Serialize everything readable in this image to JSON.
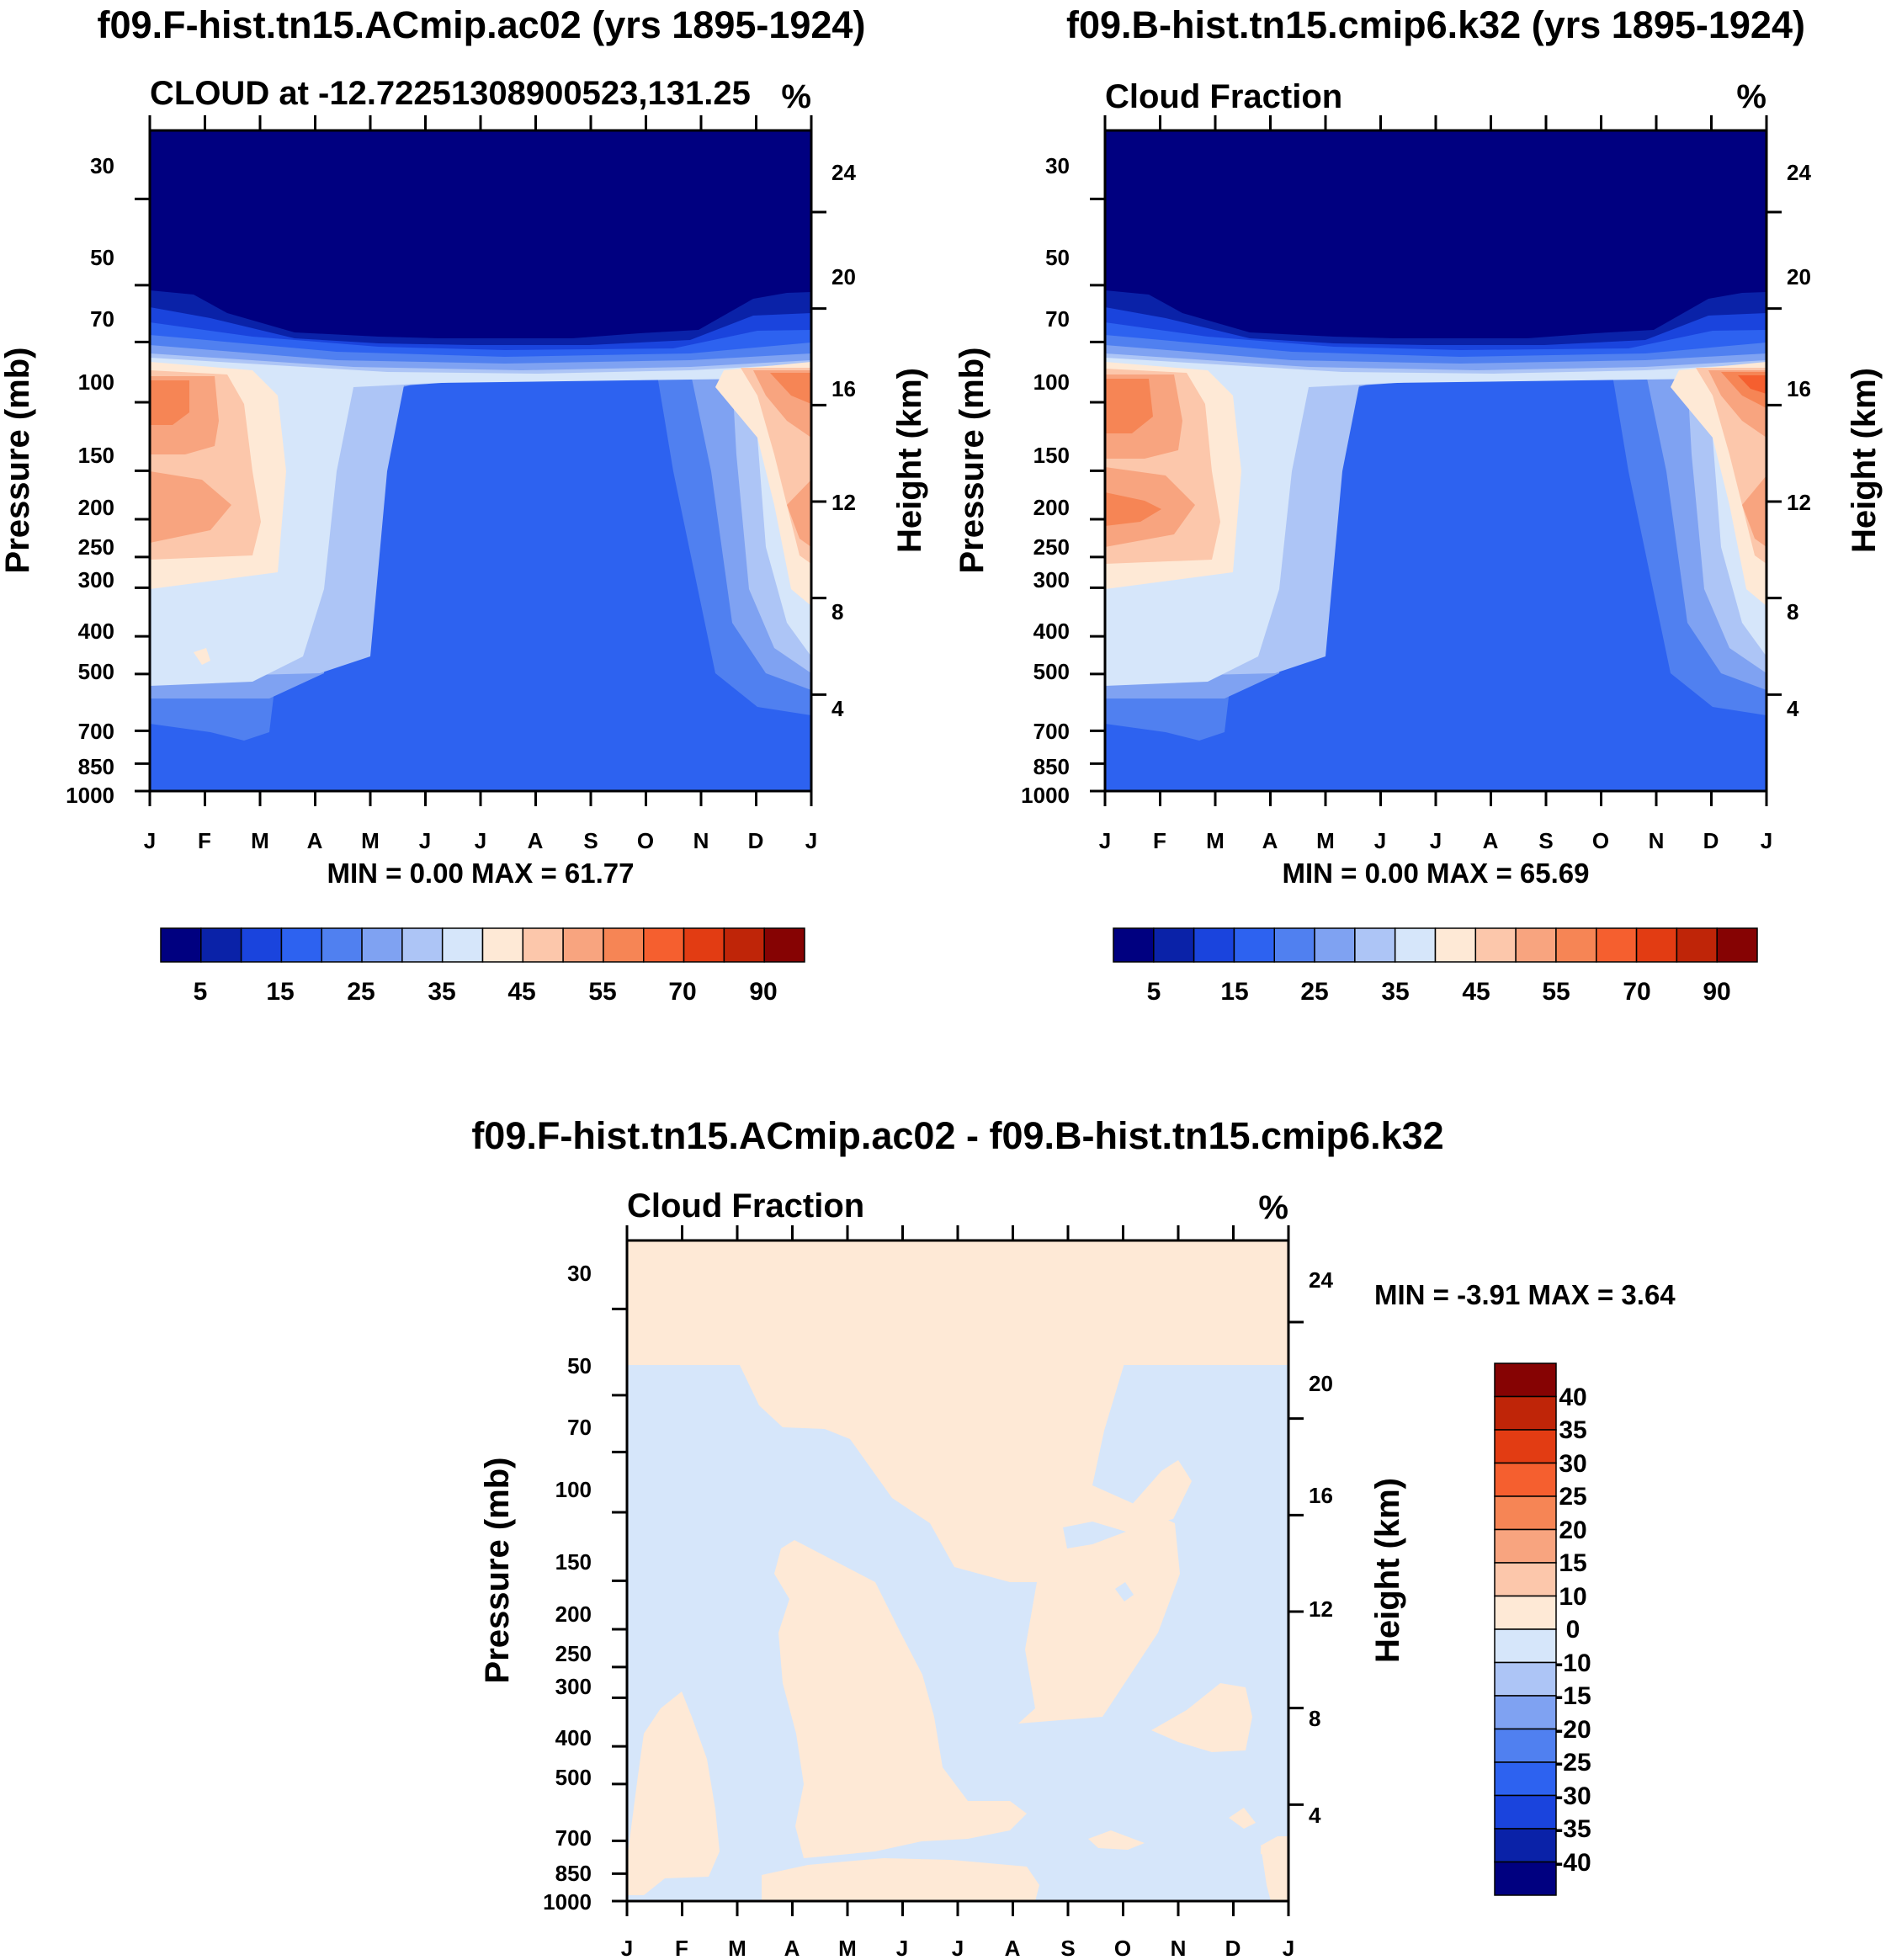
{
  "chart_data": {
    "type": "contour",
    "panels": [
      {
        "id": "p1",
        "title": "f09.F-hist.tn15.ACmip.ac02 (yrs 1895-1924)",
        "left_label": "CLOUD at -12.72251308900523,131.25",
        "right_label": "%",
        "ylabel": "Pressure (mb)",
        "y2label": "Height (km)",
        "min_max": "MIN =    0.00 MAX =  61.77",
        "months": [
          "J",
          "F",
          "M",
          "A",
          "M",
          "J",
          "J",
          "A",
          "S",
          "O",
          "N",
          "D",
          "J"
        ],
        "pressure_ticks": [
          "30",
          "50",
          "70",
          "100",
          "150",
          "200",
          "250",
          "300",
          "400",
          "500",
          "700",
          "850",
          "1000"
        ],
        "height_ticks": [
          "24",
          "20",
          "16",
          "12",
          "8",
          "4"
        ],
        "colorbar_labels": [
          "5",
          "15",
          "25",
          "35",
          "45",
          "55",
          "70",
          "90"
        ],
        "levels": [
          5,
          10,
          15,
          20,
          25,
          30,
          35,
          40,
          45,
          50,
          55,
          60,
          70,
          80,
          90
        ]
      },
      {
        "id": "p2",
        "title": "f09.B-hist.tn15.cmip6.k32 (yrs 1895-1924)",
        "left_label": "Cloud Fraction",
        "right_label": "%",
        "ylabel": "Pressure (mb)",
        "y2label": "Height (km)",
        "min_max": "MIN =    0.00 MAX =  65.69",
        "months": [
          "J",
          "F",
          "M",
          "A",
          "M",
          "J",
          "J",
          "A",
          "S",
          "O",
          "N",
          "D",
          "J"
        ],
        "pressure_ticks": [
          "30",
          "50",
          "70",
          "100",
          "150",
          "200",
          "250",
          "300",
          "400",
          "500",
          "700",
          "850",
          "1000"
        ],
        "height_ticks": [
          "24",
          "20",
          "16",
          "12",
          "8",
          "4"
        ],
        "colorbar_labels": [
          "5",
          "15",
          "25",
          "35",
          "45",
          "55",
          "70",
          "90"
        ],
        "levels": [
          5,
          10,
          15,
          20,
          25,
          30,
          35,
          40,
          45,
          50,
          55,
          60,
          70,
          80,
          90
        ]
      },
      {
        "id": "p3",
        "title": "f09.F-hist.tn15.ACmip.ac02 - f09.B-hist.tn15.cmip6.k32",
        "left_label": "Cloud Fraction",
        "right_label": "%",
        "ylabel": "Pressure (mb)",
        "y2label": "Height (km)",
        "min_max": "MIN =  -3.91 MAX =   3.64",
        "months": [
          "J",
          "F",
          "M",
          "A",
          "M",
          "J",
          "J",
          "A",
          "S",
          "O",
          "N",
          "D",
          "J"
        ],
        "pressure_ticks": [
          "30",
          "50",
          "70",
          "100",
          "150",
          "200",
          "250",
          "300",
          "400",
          "500",
          "700",
          "850",
          "1000"
        ],
        "height_ticks": [
          "24",
          "20",
          "16",
          "12",
          "8",
          "4"
        ],
        "colorbar_labels": [
          "40",
          "35",
          "30",
          "25",
          "20",
          "15",
          "10",
          "0",
          "-10",
          "-15",
          "-20",
          "-25",
          "-30",
          "-35",
          "-40"
        ],
        "range": [
          -3.91,
          3.64
        ]
      }
    ],
    "palette": {
      "dark_navy": "#000080",
      "navy": "#0a22a8",
      "blue": "#1a44dd",
      "mid_blue": "#2d62f0",
      "light_blue": "#5080f0",
      "pale_blue": "#7fa2f2",
      "paler_blue": "#adc5f6",
      "ice_blue": "#d6e6fa",
      "cream": "#fee9d6",
      "peach": "#fcc7ab",
      "salmon": "#f8a47f",
      "coral": "#f68555",
      "orange_red": "#f55f2f",
      "red_orange": "#e23c13",
      "dark_red": "#bf2508",
      "maroon": "#860303"
    }
  }
}
